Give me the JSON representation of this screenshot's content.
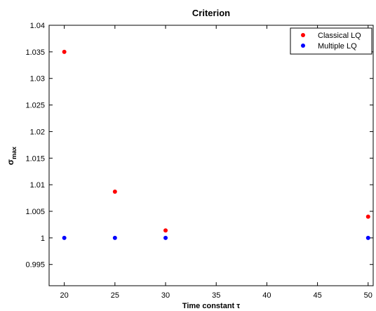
{
  "chart_data": {
    "type": "scatter",
    "title": "Criterion",
    "xlabel": "Time constant τ",
    "ylabel": {
      "base": "σ",
      "subscript": "max"
    },
    "xlim": [
      18.5,
      50.5
    ],
    "ylim": [
      0.991,
      1.04
    ],
    "x_ticks": [
      20,
      25,
      30,
      35,
      40,
      45,
      50
    ],
    "x_tick_labels": [
      "20",
      "25",
      "30",
      "35",
      "40",
      "45",
      "50"
    ],
    "y_ticks": [
      0.995,
      1.0,
      1.005,
      1.01,
      1.015,
      1.02,
      1.025,
      1.03,
      1.035,
      1.04
    ],
    "y_tick_labels": [
      "0.995",
      "1",
      "1.005",
      "1.01",
      "1.015",
      "1.02",
      "1.025",
      "1.03",
      "1.035",
      "1.04"
    ],
    "grid": false,
    "legend_position": "top-right",
    "series": [
      {
        "name": "Classical LQ",
        "color": "#ff0000",
        "x": [
          20,
          25,
          30,
          50
        ],
        "y": [
          1.035,
          1.0087,
          1.0014,
          1.004
        ]
      },
      {
        "name": "Multiple LQ",
        "color": "#0000ff",
        "x": [
          20,
          25,
          30,
          50
        ],
        "y": [
          1.0,
          1.0,
          1.0,
          1.0
        ]
      }
    ]
  }
}
